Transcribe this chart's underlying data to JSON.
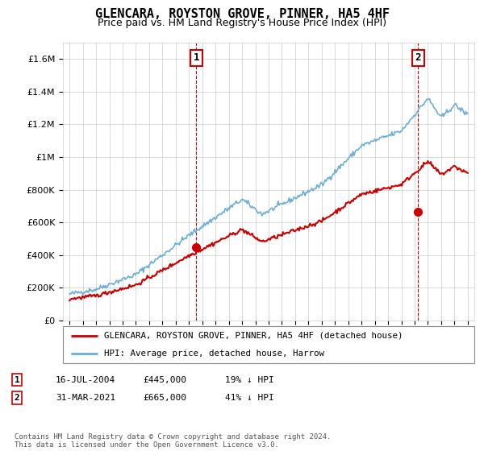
{
  "title": "GLENCARA, ROYSTON GROVE, PINNER, HA5 4HF",
  "subtitle": "Price paid vs. HM Land Registry's House Price Index (HPI)",
  "legend_line1": "GLENCARA, ROYSTON GROVE, PINNER, HA5 4HF (detached house)",
  "legend_line2": "HPI: Average price, detached house, Harrow",
  "annotation1_date": "16-JUL-2004",
  "annotation1_price": "£445,000",
  "annotation1_hpi": "19% ↓ HPI",
  "annotation2_date": "31-MAR-2021",
  "annotation2_price": "£665,000",
  "annotation2_hpi": "41% ↓ HPI",
  "footer": "Contains HM Land Registry data © Crown copyright and database right 2024.\nThis data is licensed under the Open Government Licence v3.0.",
  "hpi_color": "#6aaed6",
  "sale_color": "#cc0000",
  "annotation_color": "#cc0000",
  "ylim": [
    0,
    1700000
  ],
  "yticks": [
    0,
    200000,
    400000,
    600000,
    800000,
    1000000,
    1200000,
    1400000,
    1600000
  ],
  "ytick_labels": [
    "£0",
    "£200K",
    "£400K",
    "£600K",
    "£800K",
    "£1M",
    "£1.2M",
    "£1.4M",
    "£1.6M"
  ],
  "sale1_x": 2004.54,
  "sale1_y": 445000,
  "sale2_x": 2021.25,
  "sale2_y": 665000,
  "xlim_left": 1994.5,
  "xlim_right": 2025.5
}
